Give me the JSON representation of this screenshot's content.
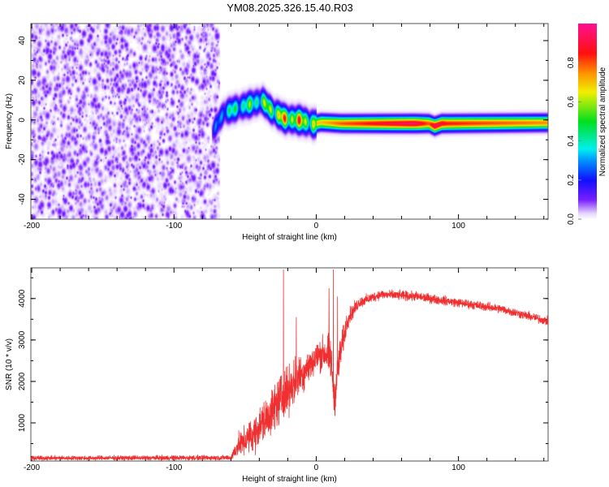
{
  "chart_data": [
    {
      "type": "heatmap",
      "title": "YM08.2025.326.15.40.R03",
      "xlabel": "Height of straight line (km)",
      "ylabel": "Frequency (Hz)",
      "xlim": [
        -200.6,
        163
      ],
      "ylim": [
        -50,
        48.6
      ],
      "xticks": [
        -200,
        -100,
        0,
        100
      ],
      "xtick_labels": [
        "-200",
        "-100",
        "0",
        "100"
      ],
      "yticks": [
        -40,
        -20,
        0,
        20,
        40
      ],
      "ytick_labels": [
        "-40",
        "-20",
        "0",
        "20",
        "40"
      ],
      "noise_region_km": [
        -200.6,
        -68
      ],
      "noise_amplitude_range": [
        0.0,
        0.12
      ],
      "ridge": {
        "km": [
          -73,
          -71,
          -65,
          -51,
          -38,
          -31,
          -22,
          -11,
          -2,
          3,
          18,
          69,
          79,
          83,
          88,
          92,
          163
        ],
        "freq_hz": [
          -6,
          -3,
          4,
          7.3,
          9.8,
          4.5,
          0.8,
          0,
          -2,
          -1,
          -1.6,
          -1.6,
          -1.6,
          -2.9,
          -1.6,
          -1.6,
          -1.2
        ],
        "amplitude": [
          0.15,
          0.3,
          0.45,
          0.55,
          0.6,
          0.75,
          0.85,
          0.85,
          0.7,
          0.7,
          0.8,
          0.95,
          0.8,
          0.95,
          0.9,
          0.85,
          0.75
        ]
      },
      "colorbar": {
        "label": "Normalized spectral amplitude",
        "range": [
          0,
          1
        ],
        "ticks": [
          0.0,
          0.2,
          0.4,
          0.6,
          0.8
        ],
        "tick_labels": [
          "0.0",
          "0.2",
          "0.4",
          "0.6",
          "0.8"
        ],
        "colors": [
          {
            "v": 0.0,
            "c": "#ffffff"
          },
          {
            "v": 0.03,
            "c": "#e8d8ff"
          },
          {
            "v": 0.1,
            "c": "#7a20ff"
          },
          {
            "v": 0.2,
            "c": "#1010ff"
          },
          {
            "v": 0.3,
            "c": "#0090ff"
          },
          {
            "v": 0.36,
            "c": "#00f0f0"
          },
          {
            "v": 0.5,
            "c": "#00e020"
          },
          {
            "v": 0.65,
            "c": "#f0f000"
          },
          {
            "v": 0.75,
            "c": "#ff9000"
          },
          {
            "v": 0.85,
            "c": "#ff1010"
          },
          {
            "v": 1.0,
            "c": "#ff1090"
          }
        ]
      }
    },
    {
      "type": "line",
      "xlabel": "Height of straight line (km)",
      "ylabel": "SNR (10 * v/v)",
      "xlim": [
        -200.6,
        163
      ],
      "ylim": [
        80,
        4740
      ],
      "xticks": [
        -200,
        -100,
        0,
        100
      ],
      "xtick_labels": [
        "-200",
        "-100",
        "0",
        "100"
      ],
      "yticks": [
        1000,
        2000,
        3000,
        4000
      ],
      "ytick_labels": [
        "1000",
        "2000",
        "3000",
        "4000"
      ],
      "color": "#f03030",
      "series": [
        {
          "name": "SNR",
          "envelope_km": [
            -200,
            -60,
            -55,
            -45,
            -35,
            -25,
            -15,
            -5,
            5,
            10,
            13,
            16,
            22,
            30,
            45,
            70,
            100,
            130,
            163
          ],
          "envelope_mean": [
            150,
            160,
            450,
            700,
            1100,
            1600,
            2000,
            2400,
            2700,
            2600,
            1600,
            2500,
            3500,
            3900,
            4100,
            4050,
            3900,
            3750,
            3450
          ],
          "envelope_noise": [
            60,
            70,
            300,
            450,
            600,
            650,
            600,
            450,
            450,
            600,
            500,
            500,
            250,
            150,
            130,
            130,
            120,
            120,
            120
          ],
          "spikes": [
            {
              "km": -23,
              "snr": 4700
            },
            {
              "km": -14,
              "snr": 3550
            },
            {
              "km": 12,
              "snr": 4700
            },
            {
              "km": 9,
              "snr": 4250
            },
            {
              "km": 15,
              "snr": 4050
            }
          ]
        }
      ]
    }
  ]
}
